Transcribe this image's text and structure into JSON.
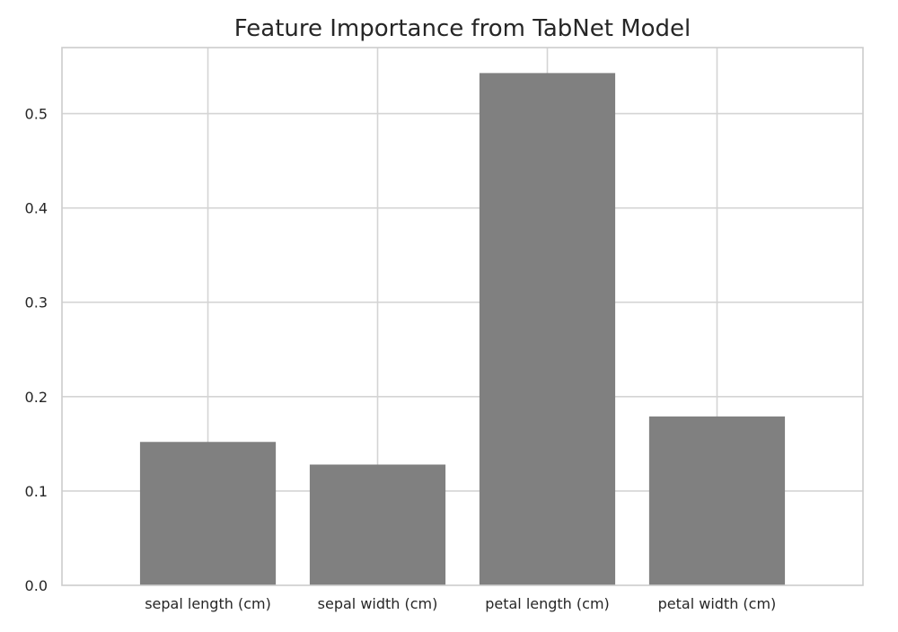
{
  "chart_data": {
    "type": "bar",
    "title": "Feature Importance from TabNet Model",
    "xlabel": "",
    "ylabel": "",
    "categories": [
      "sepal length (cm)",
      "sepal width (cm)",
      "petal length (cm)",
      "petal width (cm)"
    ],
    "values": [
      0.152,
      0.128,
      0.543,
      0.179
    ],
    "ylim": [
      0,
      0.57
    ],
    "yticks": [
      0.0,
      0.1,
      0.2,
      0.3,
      0.4,
      0.5
    ],
    "ytick_labels": [
      "0.0",
      "0.1",
      "0.2",
      "0.3",
      "0.4",
      "0.5"
    ],
    "grid": true,
    "legend": "none",
    "bar_color": "#808080"
  }
}
